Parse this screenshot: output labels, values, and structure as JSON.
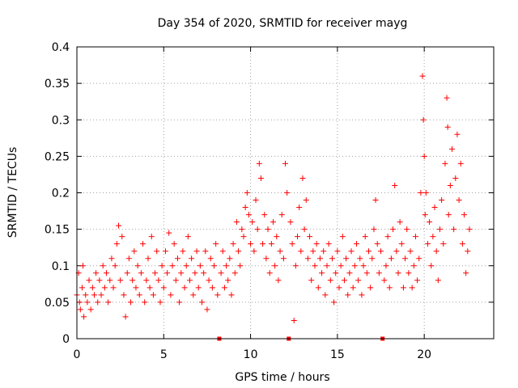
{
  "chart_data": {
    "type": "scatter",
    "title": "Day 354 of 2020, SRMTID for receiver mayg",
    "xlabel": "GPS time / hours",
    "ylabel": "SRMTID / TECUs",
    "xlim": [
      0,
      24
    ],
    "ylim": [
      0,
      0.4
    ],
    "x_ticks": [
      0,
      5,
      10,
      15,
      20
    ],
    "y_ticks": [
      0,
      0.05,
      0.1,
      0.15,
      0.2,
      0.25,
      0.3,
      0.35,
      0.4
    ],
    "x_tick_labels": [
      "0",
      "5",
      "10",
      "15",
      "20"
    ],
    "y_tick_labels": [
      "0",
      "0.05",
      "0.1",
      "0.15",
      "0.2",
      "0.25",
      "0.3",
      "0.35",
      "0.4"
    ],
    "grid": true,
    "marker": "+",
    "marker_color": "#ff0000",
    "data_gap_markers_x": [
      8.2,
      12.2,
      17.6
    ],
    "series": [
      {
        "name": "SRMTID",
        "points": [
          [
            0.0,
            0.06
          ],
          [
            0.1,
            0.09
          ],
          [
            0.15,
            0.05
          ],
          [
            0.2,
            0.04
          ],
          [
            0.3,
            0.07
          ],
          [
            0.35,
            0.1
          ],
          [
            0.4,
            0.03
          ],
          [
            0.5,
            0.06
          ],
          [
            0.6,
            0.05
          ],
          [
            0.7,
            0.08
          ],
          [
            0.8,
            0.04
          ],
          [
            0.9,
            0.07
          ],
          [
            1.0,
            0.06
          ],
          [
            1.1,
            0.09
          ],
          [
            1.2,
            0.05
          ],
          [
            1.3,
            0.08
          ],
          [
            1.4,
            0.06
          ],
          [
            1.5,
            0.1
          ],
          [
            1.6,
            0.07
          ],
          [
            1.7,
            0.09
          ],
          [
            1.8,
            0.05
          ],
          [
            1.9,
            0.08
          ],
          [
            2.0,
            0.11
          ],
          [
            2.1,
            0.07
          ],
          [
            2.2,
            0.1
          ],
          [
            2.3,
            0.13
          ],
          [
            2.4,
            0.155
          ],
          [
            2.5,
            0.08
          ],
          [
            2.6,
            0.14
          ],
          [
            2.7,
            0.06
          ],
          [
            2.8,
            0.03
          ],
          [
            2.9,
            0.09
          ],
          [
            3.0,
            0.11
          ],
          [
            3.1,
            0.05
          ],
          [
            3.2,
            0.08
          ],
          [
            3.3,
            0.12
          ],
          [
            3.4,
            0.07
          ],
          [
            3.5,
            0.1
          ],
          [
            3.6,
            0.06
          ],
          [
            3.7,
            0.09
          ],
          [
            3.8,
            0.13
          ],
          [
            3.9,
            0.05
          ],
          [
            4.0,
            0.08
          ],
          [
            4.1,
            0.11
          ],
          [
            4.2,
            0.07
          ],
          [
            4.3,
            0.14
          ],
          [
            4.4,
            0.06
          ],
          [
            4.5,
            0.09
          ],
          [
            4.6,
            0.12
          ],
          [
            4.7,
            0.08
          ],
          [
            4.8,
            0.05
          ],
          [
            4.9,
            0.1
          ],
          [
            5.0,
            0.07
          ],
          [
            5.1,
            0.12
          ],
          [
            5.2,
            0.09
          ],
          [
            5.3,
            0.145
          ],
          [
            5.4,
            0.06
          ],
          [
            5.5,
            0.1
          ],
          [
            5.6,
            0.13
          ],
          [
            5.7,
            0.08
          ],
          [
            5.8,
            0.11
          ],
          [
            5.9,
            0.05
          ],
          [
            6.0,
            0.09
          ],
          [
            6.1,
            0.12
          ],
          [
            6.2,
            0.07
          ],
          [
            6.3,
            0.1
          ],
          [
            6.4,
            0.14
          ],
          [
            6.5,
            0.08
          ],
          [
            6.6,
            0.11
          ],
          [
            6.7,
            0.06
          ],
          [
            6.8,
            0.09
          ],
          [
            6.9,
            0.12
          ],
          [
            7.0,
            0.07
          ],
          [
            7.1,
            0.1
          ],
          [
            7.2,
            0.05
          ],
          [
            7.3,
            0.09
          ],
          [
            7.4,
            0.12
          ],
          [
            7.5,
            0.04
          ],
          [
            7.6,
            0.08
          ],
          [
            7.7,
            0.11
          ],
          [
            7.8,
            0.07
          ],
          [
            7.9,
            0.1
          ],
          [
            8.0,
            0.13
          ],
          [
            8.1,
            0.06
          ],
          [
            8.3,
            0.09
          ],
          [
            8.4,
            0.12
          ],
          [
            8.5,
            0.07
          ],
          [
            8.6,
            0.1
          ],
          [
            8.7,
            0.08
          ],
          [
            8.8,
            0.11
          ],
          [
            8.9,
            0.06
          ],
          [
            9.0,
            0.13
          ],
          [
            9.1,
            0.09
          ],
          [
            9.2,
            0.16
          ],
          [
            9.3,
            0.12
          ],
          [
            9.4,
            0.1
          ],
          [
            9.5,
            0.15
          ],
          [
            9.6,
            0.14
          ],
          [
            9.7,
            0.18
          ],
          [
            9.8,
            0.2
          ],
          [
            9.9,
            0.17
          ],
          [
            10.0,
            0.13
          ],
          [
            10.1,
            0.16
          ],
          [
            10.2,
            0.12
          ],
          [
            10.3,
            0.19
          ],
          [
            10.4,
            0.15
          ],
          [
            10.5,
            0.24
          ],
          [
            10.6,
            0.22
          ],
          [
            10.7,
            0.13
          ],
          [
            10.8,
            0.17
          ],
          [
            10.9,
            0.11
          ],
          [
            11.0,
            0.15
          ],
          [
            11.1,
            0.09
          ],
          [
            11.2,
            0.13
          ],
          [
            11.3,
            0.16
          ],
          [
            11.4,
            0.1
          ],
          [
            11.5,
            0.14
          ],
          [
            11.6,
            0.08
          ],
          [
            11.7,
            0.12
          ],
          [
            11.8,
            0.17
          ],
          [
            11.9,
            0.11
          ],
          [
            12.0,
            0.24
          ],
          [
            12.1,
            0.2
          ],
          [
            12.3,
            0.16
          ],
          [
            12.4,
            0.13
          ],
          [
            12.5,
            0.025
          ],
          [
            12.6,
            0.1
          ],
          [
            12.7,
            0.14
          ],
          [
            12.8,
            0.18
          ],
          [
            12.9,
            0.12
          ],
          [
            13.0,
            0.22
          ],
          [
            13.1,
            0.15
          ],
          [
            13.2,
            0.19
          ],
          [
            13.3,
            0.11
          ],
          [
            13.4,
            0.14
          ],
          [
            13.5,
            0.08
          ],
          [
            13.6,
            0.12
          ],
          [
            13.7,
            0.1
          ],
          [
            13.8,
            0.13
          ],
          [
            13.9,
            0.07
          ],
          [
            14.0,
            0.11
          ],
          [
            14.1,
            0.09
          ],
          [
            14.2,
            0.12
          ],
          [
            14.3,
            0.06
          ],
          [
            14.4,
            0.1
          ],
          [
            14.5,
            0.13
          ],
          [
            14.6,
            0.08
          ],
          [
            14.7,
            0.11
          ],
          [
            14.8,
            0.05
          ],
          [
            14.9,
            0.09
          ],
          [
            15.0,
            0.12
          ],
          [
            15.1,
            0.07
          ],
          [
            15.2,
            0.1
          ],
          [
            15.3,
            0.14
          ],
          [
            15.4,
            0.08
          ],
          [
            15.5,
            0.11
          ],
          [
            15.6,
            0.06
          ],
          [
            15.7,
            0.09
          ],
          [
            15.8,
            0.12
          ],
          [
            15.9,
            0.07
          ],
          [
            16.0,
            0.1
          ],
          [
            16.1,
            0.13
          ],
          [
            16.2,
            0.08
          ],
          [
            16.3,
            0.11
          ],
          [
            16.4,
            0.06
          ],
          [
            16.5,
            0.1
          ],
          [
            16.6,
            0.14
          ],
          [
            16.7,
            0.09
          ],
          [
            16.8,
            0.12
          ],
          [
            16.9,
            0.07
          ],
          [
            17.0,
            0.11
          ],
          [
            17.1,
            0.15
          ],
          [
            17.2,
            0.19
          ],
          [
            17.3,
            0.13
          ],
          [
            17.4,
            0.09
          ],
          [
            17.5,
            0.12
          ],
          [
            17.7,
            0.08
          ],
          [
            17.8,
            0.1
          ],
          [
            17.9,
            0.14
          ],
          [
            18.0,
            0.07
          ],
          [
            18.1,
            0.11
          ],
          [
            18.2,
            0.15
          ],
          [
            18.3,
            0.21
          ],
          [
            18.4,
            0.12
          ],
          [
            18.5,
            0.09
          ],
          [
            18.6,
            0.16
          ],
          [
            18.7,
            0.13
          ],
          [
            18.8,
            0.07
          ],
          [
            18.9,
            0.11
          ],
          [
            19.0,
            0.15
          ],
          [
            19.1,
            0.09
          ],
          [
            19.2,
            0.12
          ],
          [
            19.3,
            0.07
          ],
          [
            19.4,
            0.1
          ],
          [
            19.5,
            0.14
          ],
          [
            19.6,
            0.08
          ],
          [
            19.7,
            0.11
          ],
          [
            19.8,
            0.2
          ],
          [
            19.9,
            0.36
          ],
          [
            19.95,
            0.3
          ],
          [
            20.0,
            0.25
          ],
          [
            20.05,
            0.17
          ],
          [
            20.1,
            0.2
          ],
          [
            20.2,
            0.13
          ],
          [
            20.3,
            0.16
          ],
          [
            20.4,
            0.1
          ],
          [
            20.5,
            0.14
          ],
          [
            20.6,
            0.18
          ],
          [
            20.7,
            0.12
          ],
          [
            20.8,
            0.08
          ],
          [
            20.9,
            0.15
          ],
          [
            21.0,
            0.19
          ],
          [
            21.1,
            0.13
          ],
          [
            21.2,
            0.24
          ],
          [
            21.3,
            0.33
          ],
          [
            21.35,
            0.29
          ],
          [
            21.4,
            0.17
          ],
          [
            21.5,
            0.21
          ],
          [
            21.6,
            0.26
          ],
          [
            21.7,
            0.15
          ],
          [
            21.8,
            0.22
          ],
          [
            21.9,
            0.28
          ],
          [
            22.0,
            0.19
          ],
          [
            22.1,
            0.24
          ],
          [
            22.2,
            0.13
          ],
          [
            22.3,
            0.17
          ],
          [
            22.4,
            0.09
          ],
          [
            22.5,
            0.12
          ],
          [
            22.6,
            0.15
          ]
        ]
      }
    ]
  }
}
